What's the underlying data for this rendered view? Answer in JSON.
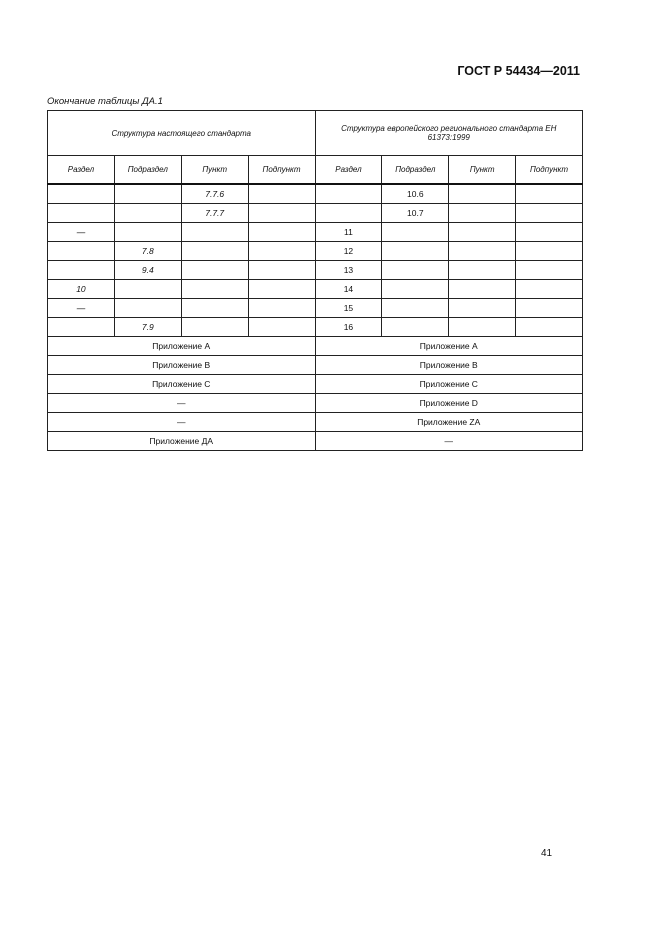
{
  "header": {
    "doc_title": "ГОСТ Р 54434—2011"
  },
  "caption": "Окончание таблицы ДА.1",
  "table": {
    "group_headers": [
      "Структура настоящего стандарта",
      "Структура европейского регионального стандарта ЕН 61373:1999"
    ],
    "columns": [
      "Раздел",
      "Подраздел",
      "Пункт",
      "Подпункт",
      "Раздел",
      "Подраздел",
      "Пункт",
      "Подпункт"
    ],
    "rows": [
      [
        "",
        "",
        "7.7.6",
        "",
        "",
        "10.6",
        "",
        ""
      ],
      [
        "",
        "",
        "7.7.7",
        "",
        "",
        "10.7",
        "",
        ""
      ],
      [
        "—",
        "",
        "",
        "",
        "11",
        "",
        "",
        ""
      ],
      [
        "",
        "7.8",
        "",
        "",
        "12",
        "",
        "",
        ""
      ],
      [
        "",
        "9.4",
        "",
        "",
        "13",
        "",
        "",
        ""
      ],
      [
        "10",
        "",
        "",
        "",
        "14",
        "",
        "",
        ""
      ],
      [
        "—",
        "",
        "",
        "",
        "15",
        "",
        "",
        ""
      ],
      [
        "",
        "7.9",
        "",
        "",
        "16",
        "",
        "",
        ""
      ]
    ],
    "appendix_rows": [
      [
        "Приложение А",
        "Приложение А"
      ],
      [
        "Приложение В",
        "Приложение В"
      ],
      [
        "Приложение С",
        "Приложение С"
      ],
      [
        "—",
        "Приложение D"
      ],
      [
        "—",
        "Приложение ZA"
      ],
      [
        "Приложение ДА",
        "—"
      ]
    ]
  },
  "footer": {
    "page_number": "41"
  }
}
